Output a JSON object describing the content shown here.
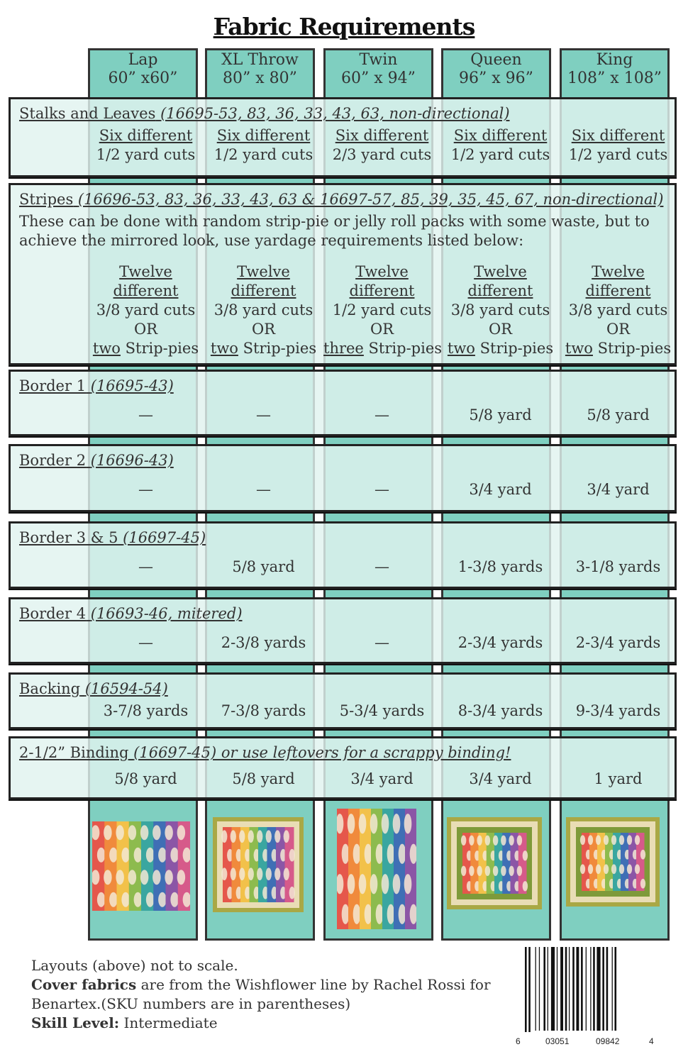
{
  "title": "Fabric Requirements",
  "sizes": [
    {
      "name": "Lap",
      "dims": "60” x60”"
    },
    {
      "name": "XL Throw",
      "dims": "80” x 80”"
    },
    {
      "name": "Twin",
      "dims": "60” x 94”"
    },
    {
      "name": "Queen",
      "dims": "96” x 96”"
    },
    {
      "name": "King",
      "dims": "108” x 108”"
    }
  ],
  "rows": {
    "stalks": {
      "label": "Stalks and Leaves",
      "sku": "(16695-53, 83, 36, 33, 43, 63, non-directional)",
      "line1": [
        "Six different",
        "Six different",
        "Six different",
        "Six different",
        "Six different"
      ],
      "line2": [
        "1/2 yard cuts",
        "1/2 yard cuts",
        "2/3 yard cuts",
        "1/2 yard cuts",
        "1/2 yard cuts"
      ]
    },
    "stripes": {
      "label": "Stripes",
      "sku": "(16696-53, 83, 36, 33, 43, 63 & 16697-57, 85, 39, 35, 45, 67, non-directional)",
      "note": "These can be done with random strip-pie or jelly roll packs with some waste, but to achieve the mirrored look, use yardage requirements listed below:",
      "a": [
        "Twelve",
        "Twelve",
        "Twelve",
        "Twelve",
        "Twelve"
      ],
      "b": [
        "different",
        "different",
        "different",
        "different",
        "different"
      ],
      "c": [
        "3/8 yard cuts",
        "3/8 yard cuts",
        "1/2 yard cuts",
        "3/8 yard cuts",
        "3/8 yard cuts"
      ],
      "or": "OR",
      "n": [
        "two",
        "two",
        "three",
        "two",
        "two"
      ],
      "sp": "Strip-pies"
    },
    "border1": {
      "label": "Border 1",
      "sku": "(16695-43)",
      "values": [
        "—",
        "—",
        "—",
        "5/8 yard",
        "5/8 yard"
      ]
    },
    "border2": {
      "label": "Border 2",
      "sku": "(16696-43)",
      "values": [
        "—",
        "—",
        "—",
        "3/4  yard",
        "3/4 yard"
      ]
    },
    "border35": {
      "label": "Border 3 & 5",
      "sku": "(16697-45)",
      "values": [
        "—",
        "5/8 yard",
        "—",
        "1-3/8 yards",
        "3-1/8 yards"
      ]
    },
    "border4": {
      "label": "Border 4",
      "sku": "(16693-46, mitered)",
      "values": [
        "—",
        "2-3/8 yards",
        "—",
        "2-3/4 yards",
        "2-3/4 yards"
      ]
    },
    "backing": {
      "label": "Backing",
      "sku": "(16594-54)",
      "values": [
        "3-7/8 yards",
        "7-3/8 yards",
        "5-3/4 yards",
        "8-3/4 yards",
        "9-3/4 yards"
      ]
    },
    "binding": {
      "label": "2-1/2” Binding",
      "sku": "(16697-45) or use leftovers for a scrappy binding!",
      "values": [
        "5/8 yard",
        "5/8 yard",
        "3/4 yard",
        "3/4 yard",
        "1 yard"
      ]
    }
  },
  "footer": {
    "line1": "Layouts (above) not to scale.",
    "cover_bold": "Cover fabrics",
    "cover_rest": " are from the Wishflower line by Rachel Rossi for",
    "line3": "Benartex.(SKU numbers are in parentheses)",
    "skill_bold": "Skill Level:",
    "skill_value": " Intermediate"
  },
  "barcode": {
    "d1": "6",
    "d2": "03051",
    "d3": "09842",
    "d4": "4"
  },
  "colors": {
    "column": "#7fcfc0",
    "row": "#e1f3ef",
    "border": "#222222"
  }
}
